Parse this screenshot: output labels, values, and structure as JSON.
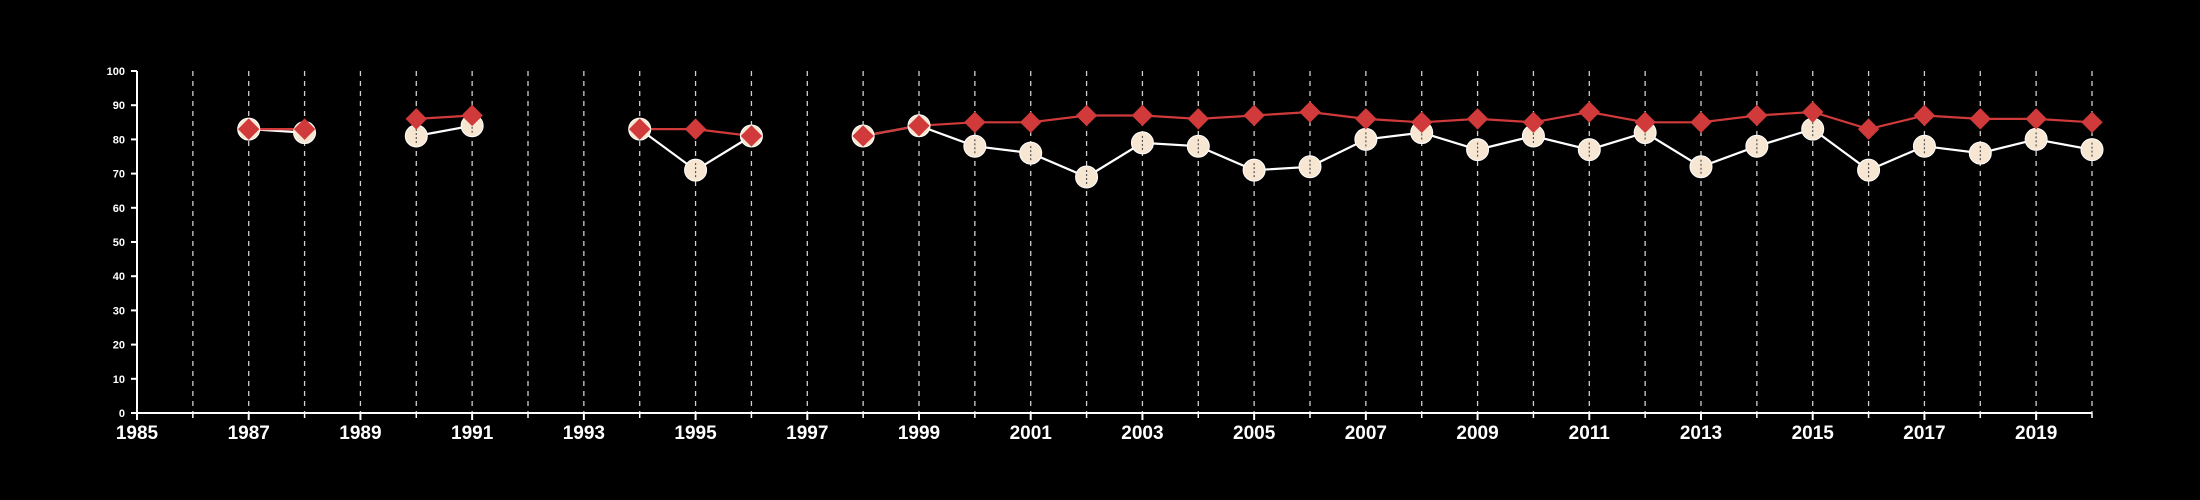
{
  "chart_data": {
    "type": "line",
    "xlim": [
      1985,
      2020
    ],
    "ylim": [
      0,
      100
    ],
    "y_ticks": [
      0,
      10,
      20,
      30,
      40,
      50,
      60,
      70,
      80,
      90,
      100
    ],
    "x_ticks": [
      1985,
      1987,
      1989,
      1991,
      1993,
      1995,
      1997,
      1999,
      2001,
      2003,
      2005,
      2007,
      2009,
      2011,
      2013,
      2015,
      2017,
      2019
    ],
    "x_tick_labels": [
      "1985",
      "1987",
      "1989",
      "1991",
      "1993",
      "1995",
      "1997",
      "1999",
      "2001",
      "2003",
      "2005",
      "2007",
      "2009",
      "2011",
      "2013",
      "2015",
      "2017",
      "2019"
    ],
    "y_tick_labels": [
      "0",
      "10",
      "20",
      "30",
      "40",
      "50",
      "60",
      "70",
      "80",
      "90",
      "100"
    ],
    "vertical_gridlines_years": [
      1986,
      1987,
      1988,
      1989,
      1990,
      1991,
      1992,
      1993,
      1994,
      1995,
      1996,
      1997,
      1998,
      1999,
      2000,
      2001,
      2002,
      2003,
      2004,
      2005,
      2006,
      2007,
      2008,
      2009,
      2010,
      2011,
      2012,
      2013,
      2014,
      2015,
      2016,
      2017,
      2018,
      2019,
      2020
    ],
    "grid": "vertical dashed",
    "legend": "none",
    "series": [
      {
        "color": "#f7e6d2",
        "line_color": "#ffffff",
        "marker": "circle",
        "segments": [
          {
            "x": [
              1987,
              1988
            ],
            "y": [
              83,
              82
            ]
          },
          {
            "x": [
              1990,
              1991
            ],
            "y": [
              81,
              84
            ]
          },
          {
            "x": [
              1994,
              1995,
              1996
            ],
            "y": [
              83,
              71,
              81
            ]
          },
          {
            "x": [
              1998,
              1999,
              2000,
              2001,
              2002,
              2003,
              2004,
              2005,
              2006,
              2007,
              2008,
              2009,
              2010,
              2011,
              2012,
              2013,
              2014,
              2015,
              2016,
              2017,
              2018,
              2019,
              2020
            ],
            "y": [
              81,
              84,
              78,
              76,
              69,
              79,
              78,
              71,
              72,
              80,
              82,
              77,
              81,
              77,
              82,
              72,
              78,
              83,
              71,
              78,
              76,
              80,
              77
            ]
          }
        ]
      },
      {
        "color": "#d13a3a",
        "line_color": "#d13a3a",
        "marker": "diamond",
        "segments": [
          {
            "x": [
              1987,
              1988
            ],
            "y": [
              83,
              83
            ]
          },
          {
            "x": [
              1990,
              1991
            ],
            "y": [
              86,
              87
            ]
          },
          {
            "x": [
              1994,
              1995,
              1996
            ],
            "y": [
              83,
              83,
              81
            ]
          },
          {
            "x": [
              1998,
              1999,
              2000,
              2001,
              2002,
              2003,
              2004,
              2005,
              2006,
              2007,
              2008,
              2009,
              2010,
              2011,
              2012,
              2013,
              2014,
              2015,
              2016,
              2017,
              2018,
              2019,
              2020
            ],
            "y": [
              81,
              84,
              85,
              85,
              87,
              87,
              86,
              87,
              88,
              86,
              85,
              86,
              85,
              88,
              85,
              85,
              87,
              88,
              83,
              87,
              86,
              86,
              85
            ]
          }
        ]
      }
    ]
  }
}
